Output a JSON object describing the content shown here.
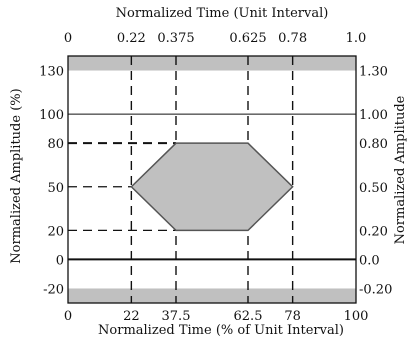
{
  "chart_data": {
    "type": "area",
    "title": "",
    "top_axis": {
      "label": "Normalized Time (Unit Interval)",
      "ticks": [
        {
          "value": 0,
          "label": "0"
        },
        {
          "value": 22,
          "label": "0.22"
        },
        {
          "value": 37.5,
          "label": "0.375"
        },
        {
          "value": 62.5,
          "label": "0.625"
        },
        {
          "value": 78,
          "label": "0.78"
        },
        {
          "value": 100,
          "label": "1.0"
        }
      ]
    },
    "bottom_axis": {
      "label": "Normalized Time (% of Unit Interval)",
      "ticks": [
        {
          "value": 0,
          "label": "0"
        },
        {
          "value": 22,
          "label": "22"
        },
        {
          "value": 37.5,
          "label": "37.5"
        },
        {
          "value": 62.5,
          "label": "62.5"
        },
        {
          "value": 78,
          "label": "78"
        },
        {
          "value": 100,
          "label": "100"
        }
      ]
    },
    "left_axis": {
      "label": "Normalized Amplitude (%)",
      "ticks": [
        {
          "value": 130,
          "label": "130"
        },
        {
          "value": 100,
          "label": "100"
        },
        {
          "value": 80,
          "label": "80"
        },
        {
          "value": 50,
          "label": "50"
        },
        {
          "value": 20,
          "label": "20"
        },
        {
          "value": 0,
          "label": "0"
        },
        {
          "value": -20,
          "label": "-20"
        }
      ]
    },
    "right_axis": {
      "label": "Normalized Amplitude",
      "ticks": [
        {
          "value": 130,
          "label": "1.30"
        },
        {
          "value": 100,
          "label": "1.00"
        },
        {
          "value": 80,
          "label": "0.80"
        },
        {
          "value": 50,
          "label": "0.50"
        },
        {
          "value": 20,
          "label": "0.20"
        },
        {
          "value": 0,
          "label": "0.0"
        },
        {
          "value": -20,
          "label": "-0.20"
        }
      ]
    },
    "xlim": [
      0,
      100
    ],
    "ylim": [
      -30,
      140
    ],
    "forbidden_regions": [
      {
        "name": "upper",
        "y_from": 130,
        "y_to": 140
      },
      {
        "name": "lower",
        "y_from": -30,
        "y_to": -20
      }
    ],
    "eye_mask": {
      "points": [
        [
          22,
          50
        ],
        [
          37.5,
          80
        ],
        [
          62.5,
          80
        ],
        [
          78,
          50
        ],
        [
          62.5,
          20
        ],
        [
          37.5,
          20
        ]
      ]
    },
    "solid_hlines": [
      100,
      0
    ],
    "dashed_vlines": [
      22,
      37.5,
      62.5,
      78
    ],
    "dashed_hlines": [
      {
        "y": 80,
        "x_to": 37.5
      },
      {
        "y": 50,
        "x_to": 22
      },
      {
        "y": 20,
        "x_to": 37.5
      }
    ],
    "colors": {
      "fill": "#c0c0c0",
      "stroke": "#555555",
      "line": "#111111"
    }
  }
}
